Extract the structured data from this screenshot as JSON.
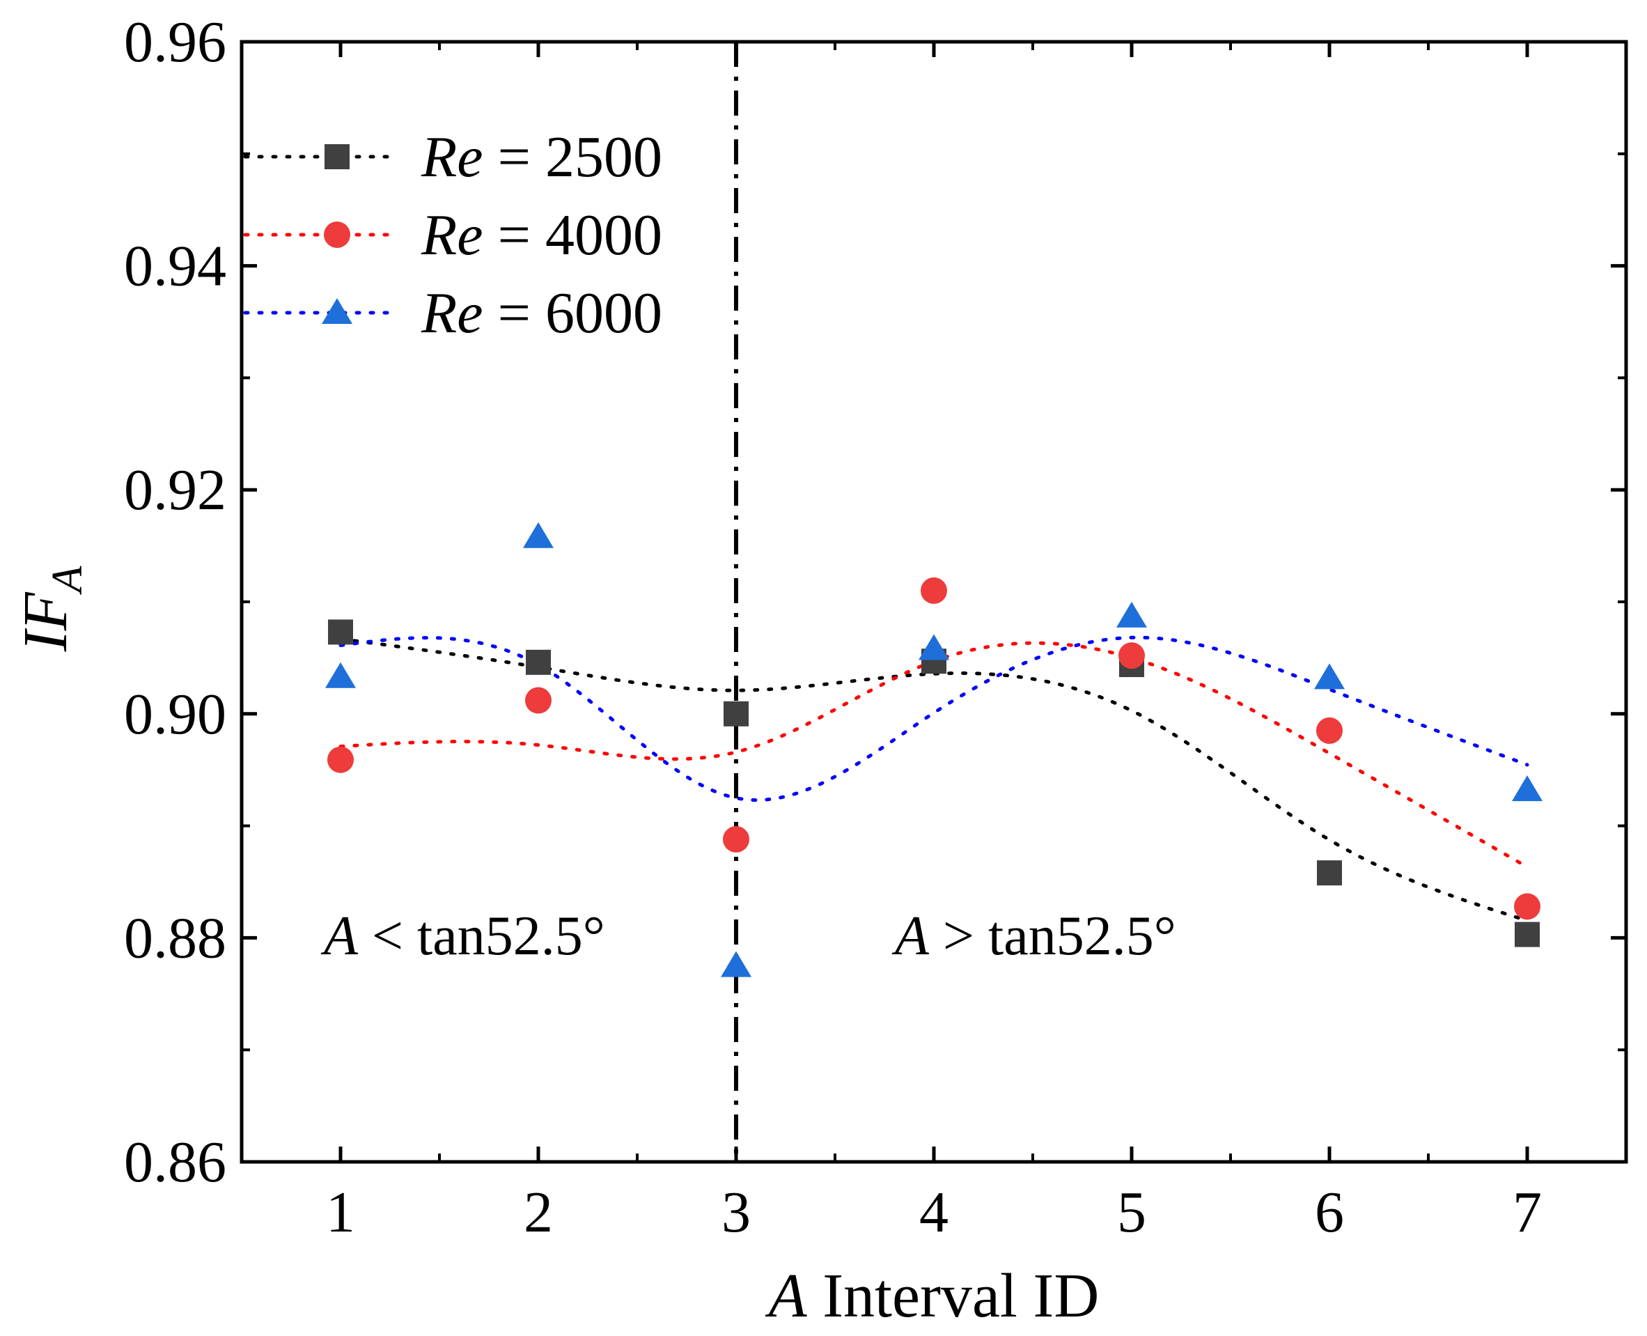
{
  "chart_data": {
    "type": "scatter",
    "xlabel_var": "A",
    "xlabel_rest": " Interval ID",
    "ylabel_main": "IF",
    "ylabel_sub": "A",
    "xlim": [
      0.5,
      7.5
    ],
    "ylim": [
      0.86,
      0.96
    ],
    "xticks": [
      1,
      2,
      3,
      4,
      5,
      6,
      7
    ],
    "yticks": [
      0.86,
      0.88,
      0.9,
      0.92,
      0.94,
      0.96
    ],
    "ytick_labels": [
      "0.86",
      "0.88",
      "0.90",
      "0.92",
      "0.94",
      "0.96"
    ],
    "grid": false,
    "legend_placement": "top-left",
    "divider_x": 3,
    "annotations": [
      {
        "var": "A",
        "op": " < ",
        "text": "tan52.5°",
        "side": "left"
      },
      {
        "var": "A",
        "op": " > ",
        "text": "tan52.5°",
        "side": "right"
      }
    ],
    "series": [
      {
        "name_var": "Re",
        "name_rest": " = 2500",
        "marker": "square",
        "color": "#404040",
        "line_color": "#000000",
        "x": [
          1,
          2,
          3,
          4,
          5,
          6,
          7
        ],
        "y": [
          0.9073,
          0.9046,
          0.9,
          0.9047,
          0.9044,
          0.8858,
          0.8803
        ]
      },
      {
        "name_var": "Re",
        "name_rest": " = 4000",
        "marker": "circle",
        "color": "#ee3b3b",
        "line_color": "#ff0000",
        "x": [
          1,
          2,
          3,
          4,
          5,
          6,
          7
        ],
        "y": [
          0.8959,
          0.9012,
          0.8888,
          0.911,
          0.9052,
          0.8985,
          0.8828
        ]
      },
      {
        "name_var": "Re",
        "name_rest": " = 6000",
        "marker": "triangle",
        "color": "#1e6fd9",
        "line_color": "#0000ff",
        "x": [
          1,
          2,
          3,
          4,
          5,
          6,
          7
        ],
        "y": [
          0.9033,
          0.9158,
          0.8775,
          0.9058,
          0.9087,
          0.9032,
          0.8932
        ]
      }
    ]
  }
}
